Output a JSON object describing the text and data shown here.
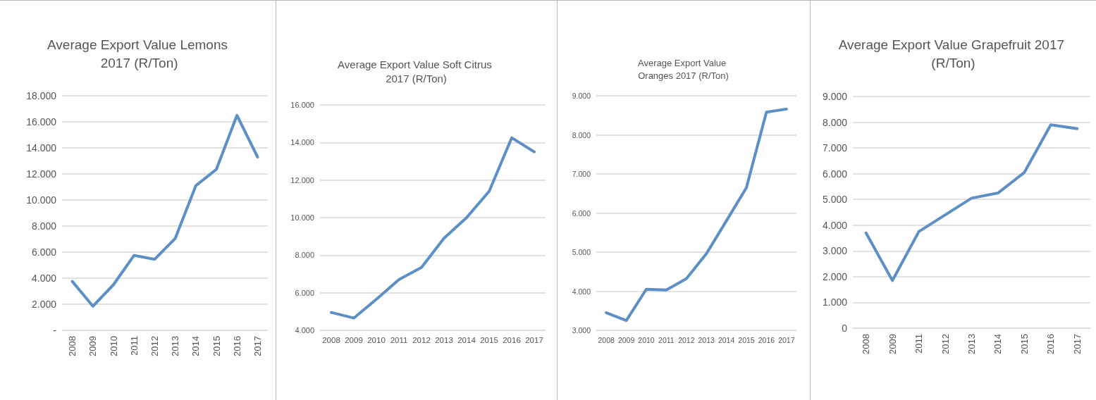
{
  "chart_data": [
    {
      "type": "line",
      "title": "Average Export Value Lemons 2017 (R/Ton)",
      "categories": [
        "2008",
        "2009",
        "2010",
        "2011",
        "2012",
        "2013",
        "2014",
        "2015",
        "2016",
        "2017"
      ],
      "series": [
        {
          "color": "#5b8fc6",
          "values": [
            3750,
            1850,
            3500,
            5750,
            5450,
            7050,
            11100,
            12350,
            16500,
            13300
          ]
        }
      ],
      "ylim": [
        0,
        18000
      ],
      "yticks": [
        {
          "value": 0,
          "label": "-"
        },
        {
          "value": 2000,
          "label": "2.000"
        },
        {
          "value": 4000,
          "label": "4.000"
        },
        {
          "value": 6000,
          "label": "6.000"
        },
        {
          "value": 8000,
          "label": "8.000"
        },
        {
          "value": 10000,
          "label": "10.000"
        },
        {
          "value": 12000,
          "label": "12.000"
        },
        {
          "value": 14000,
          "label": "14.000"
        },
        {
          "value": 16000,
          "label": "16.000"
        },
        {
          "value": 18000,
          "label": "18.000"
        }
      ],
      "grid": "y",
      "marker": "none",
      "line_style": "solid"
    },
    {
      "type": "line",
      "title": "Average Export Value Soft Citrus 2017 (R/Ton)",
      "categories": [
        "2008",
        "2009",
        "2010",
        "2011",
        "2012",
        "2013",
        "2014",
        "2015",
        "2016",
        "2017"
      ],
      "series": [
        {
          "color": "#5b8fc6",
          "values": [
            4950,
            4650,
            5650,
            6700,
            7350,
            8900,
            10000,
            11400,
            14250,
            13500
          ]
        }
      ],
      "ylim": [
        4000,
        16000
      ],
      "yticks": [
        {
          "value": 4000,
          "label": "4.000"
        },
        {
          "value": 6000,
          "label": "6.000"
        },
        {
          "value": 8000,
          "label": "8.000"
        },
        {
          "value": 10000,
          "label": "10.000"
        },
        {
          "value": 12000,
          "label": "12.000"
        },
        {
          "value": 14000,
          "label": "14.000"
        },
        {
          "value": 16000,
          "label": "16.000"
        }
      ],
      "grid": "y",
      "marker": "none",
      "line_style": "solid"
    },
    {
      "type": "line",
      "title": "Average Export Value Oranges 2017 (R/Ton)",
      "categories": [
        "2008",
        "2009",
        "2010",
        "2011",
        "2012",
        "2013",
        "2014",
        "2015",
        "2016",
        "2017"
      ],
      "series": [
        {
          "color": "#5b8fc6",
          "values": [
            3450,
            3250,
            4050,
            4030,
            4320,
            4960,
            5800,
            6650,
            8580,
            8660
          ]
        }
      ],
      "ylim": [
        3000,
        9000
      ],
      "yticks": [
        {
          "value": 3000,
          "label": "3.000"
        },
        {
          "value": 4000,
          "label": "4.000"
        },
        {
          "value": 5000,
          "label": "5.000"
        },
        {
          "value": 6000,
          "label": "6.000"
        },
        {
          "value": 7000,
          "label": "7.000"
        },
        {
          "value": 8000,
          "label": "8.000"
        },
        {
          "value": 9000,
          "label": "9.000"
        }
      ],
      "grid": "y",
      "marker": "none",
      "line_style": "solid"
    },
    {
      "type": "line",
      "title": "Average Export Value Grapefruit 2017 (R/Ton)",
      "categories": [
        "2008",
        "2009",
        "2011",
        "2012",
        "2013",
        "2014",
        "2015",
        "2016",
        "2017"
      ],
      "series": [
        {
          "color": "#5b8fc6",
          "values": [
            3700,
            1850,
            3750,
            4400,
            5050,
            5250,
            6050,
            7900,
            7750
          ]
        }
      ],
      "ylim": [
        0,
        9000
      ],
      "yticks": [
        0,
        {
          "value": 1000,
          "label": "1.000"
        },
        {
          "value": 2000,
          "label": "2.000"
        },
        {
          "value": 3000,
          "label": "3.000"
        },
        {
          "value": 4000,
          "label": "4.000"
        },
        {
          "value": 5000,
          "label": "5.000"
        },
        {
          "value": 6000,
          "label": "6.000"
        },
        {
          "value": 7000,
          "label": "7.000"
        },
        {
          "value": 8000,
          "label": "8.000"
        },
        {
          "value": 9000,
          "label": "9.000"
        }
      ],
      "grid": "y",
      "marker": "none",
      "line_style": "solid"
    }
  ]
}
